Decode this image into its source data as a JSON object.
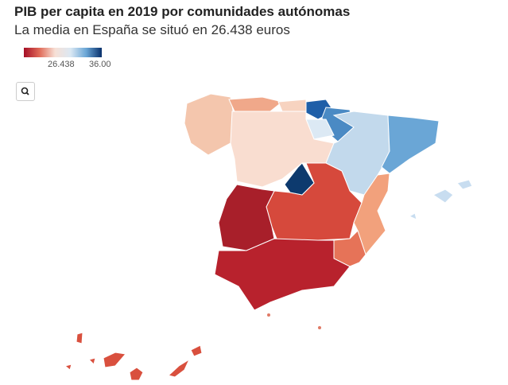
{
  "header": {
    "title": "PIB per capita en 2019 por comunidades autónomas",
    "subtitle": "La media en España se situó en 26.438 euros"
  },
  "legend": {
    "labels": [
      "26.438",
      "36.00"
    ]
  }
}
